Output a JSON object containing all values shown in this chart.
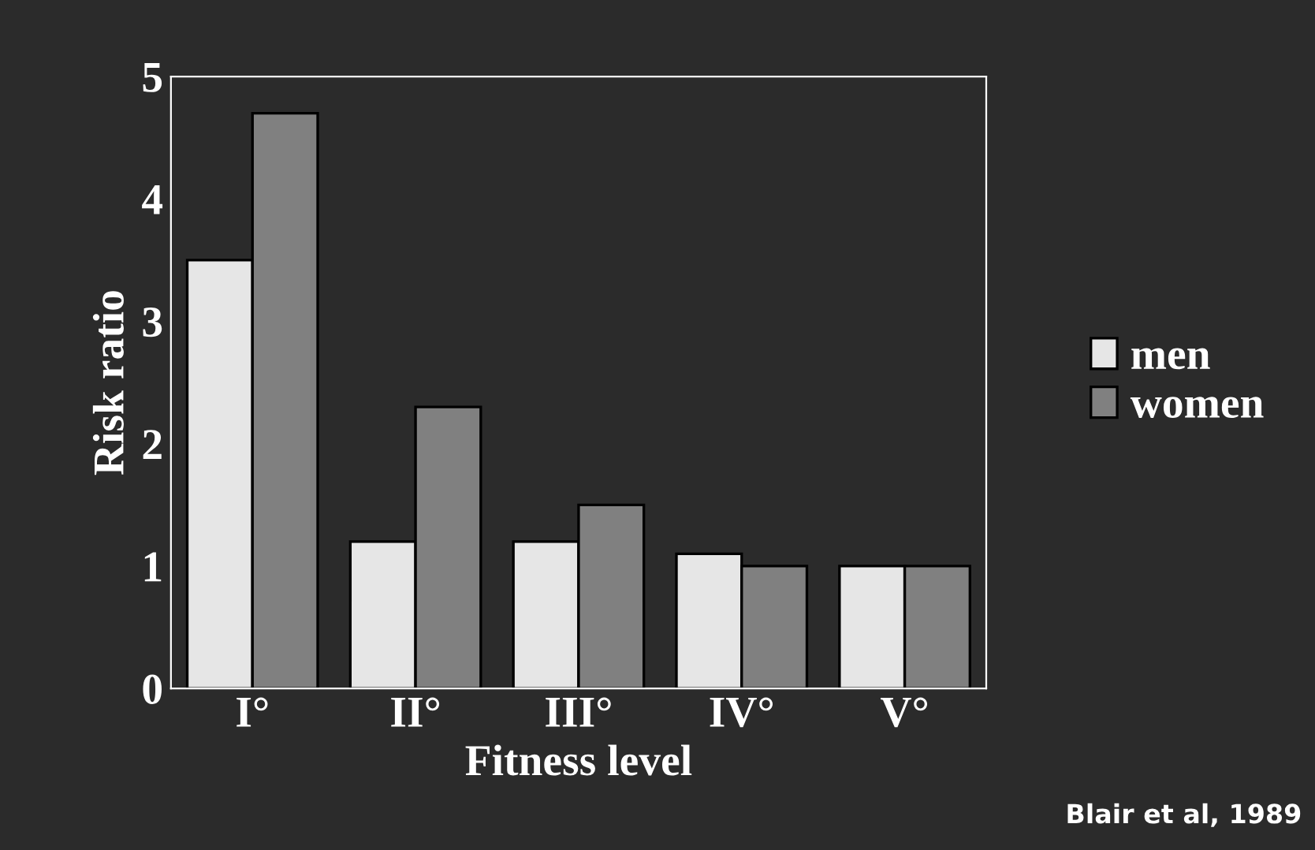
{
  "chart_data": {
    "type": "bar",
    "xlabel": "Fitness level",
    "ylabel": "Risk ratio",
    "categories": [
      "I°",
      "II°",
      "III°",
      "IV°",
      "V°"
    ],
    "series": [
      {
        "name": "men",
        "color": "#e6e6e6",
        "values": [
          3.5,
          1.2,
          1.2,
          1.1,
          1.0
        ]
      },
      {
        "name": "women",
        "color": "#808080",
        "values": [
          4.7,
          2.3,
          1.5,
          1.0,
          1.0
        ]
      }
    ],
    "ylim": [
      0,
      5
    ],
    "yticks": [
      0,
      1,
      2,
      3,
      4,
      5
    ],
    "grid": false,
    "legend": "right",
    "annotations": [
      "Blair et al, 1989"
    ]
  }
}
